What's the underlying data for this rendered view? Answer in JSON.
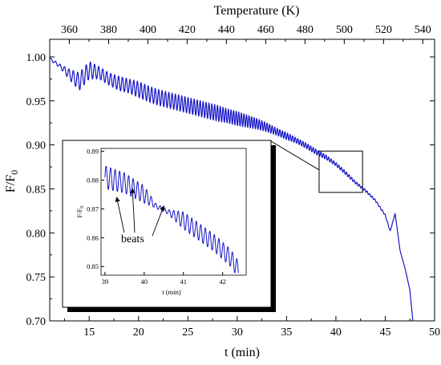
{
  "chart_data": [
    {
      "type": "line",
      "title": "",
      "xlabel": "t (min)",
      "ylabel": "F/F",
      "ylabel_subscript": "0",
      "x2label": "Temperature (K)",
      "xlim": [
        11,
        50
      ],
      "ylim": [
        0.7,
        1.02
      ],
      "x2lim": [
        350,
        546
      ],
      "xticks": [
        "15",
        "20",
        "25",
        "30",
        "35",
        "40",
        "45",
        "50"
      ],
      "yticks": [
        "0.70",
        "0.75",
        "0.80",
        "0.85",
        "0.90",
        "0.95",
        "1.00"
      ],
      "x2ticks": [
        "360",
        "380",
        "400",
        "420",
        "440",
        "460",
        "480",
        "500",
        "520",
        "540"
      ],
      "grid": false,
      "legend": "none",
      "line_color": "#1515c8",
      "series": [
        {
          "x": [
            11,
            12,
            13,
            14,
            15,
            16,
            17,
            18,
            19,
            20,
            21,
            22,
            23,
            24,
            25,
            26,
            27,
            28,
            29,
            30,
            31,
            32,
            33,
            34,
            35,
            36,
            37,
            38,
            39,
            40,
            41,
            42,
            43,
            44,
            45,
            45.5,
            46,
            46.5,
            47,
            47.5,
            47.8
          ],
          "y": [
            0.998,
            0.99,
            0.98,
            0.972,
            0.985,
            0.982,
            0.975,
            0.97,
            0.967,
            0.963,
            0.958,
            0.954,
            0.951,
            0.948,
            0.945,
            0.942,
            0.939,
            0.936,
            0.933,
            0.93,
            0.927,
            0.924,
            0.92,
            0.915,
            0.91,
            0.905,
            0.899,
            0.892,
            0.886,
            0.878,
            0.868,
            0.857,
            0.848,
            0.837,
            0.82,
            0.802,
            0.822,
            0.78,
            0.76,
            0.735,
            0.7
          ],
          "oscillation": [
            [
              11,
              0.0015
            ],
            [
              12,
              0.002
            ],
            [
              13,
              0.006
            ],
            [
              14,
              0.01
            ],
            [
              15,
              0.01
            ],
            [
              16,
              0.007
            ],
            [
              17,
              0.007
            ],
            [
              18,
              0.008
            ],
            [
              19,
              0.008
            ],
            [
              20,
              0.009
            ],
            [
              21,
              0.009
            ],
            [
              22,
              0.009
            ],
            [
              23,
              0.009
            ],
            [
              24,
              0.009
            ],
            [
              25,
              0.009
            ],
            [
              26,
              0.009
            ],
            [
              27,
              0.009
            ],
            [
              28,
              0.009
            ],
            [
              29,
              0.008
            ],
            [
              30,
              0.008
            ],
            [
              31,
              0.007
            ],
            [
              32,
              0.006
            ],
            [
              33,
              0.005
            ],
            [
              34,
              0.004
            ],
            [
              35,
              0.004
            ],
            [
              36,
              0.003
            ],
            [
              37,
              0.003
            ],
            [
              38,
              0.003
            ],
            [
              39,
              0.0025
            ],
            [
              40,
              0.002
            ],
            [
              41,
              0.002
            ],
            [
              42,
              0.0015
            ],
            [
              43,
              0.0015
            ],
            [
              44,
              0.001
            ],
            [
              45,
              0.001
            ],
            [
              46,
              0.0
            ],
            [
              48,
              0.0
            ]
          ]
        }
      ],
      "zoom_box": {
        "x": [
          38.3,
          42.7
        ],
        "y": [
          0.846,
          0.893
        ]
      }
    },
    {
      "type": "line",
      "title": "",
      "xlabel": "t (min)",
      "ylabel": "F/F",
      "ylabel_subscript": "0",
      "xlim": [
        38.9,
        42.6
      ],
      "ylim": [
        0.847,
        0.891
      ],
      "xticks": [
        "39",
        "40",
        "41",
        "42"
      ],
      "yticks": [
        "0.85",
        "0.86",
        "0.87",
        "0.88",
        "0.89"
      ],
      "grid": false,
      "legend": "none",
      "line_color": "#1515c8",
      "series": [
        {
          "x": [
            39.0,
            39.5,
            40.0,
            40.3,
            40.6,
            41.0,
            41.4,
            41.8,
            42.2,
            42.4
          ],
          "y": [
            0.881,
            0.879,
            0.875,
            0.871,
            0.869,
            0.866,
            0.862,
            0.858,
            0.853,
            0.849
          ],
          "oscillation": [
            [
              39.0,
              0.004
            ],
            [
              39.5,
              0.0035
            ],
            [
              40.0,
              0.003
            ],
            [
              40.3,
              0.0008
            ],
            [
              40.6,
              0.0008
            ],
            [
              41.0,
              0.003
            ],
            [
              41.4,
              0.003
            ],
            [
              41.8,
              0.003
            ],
            [
              42.2,
              0.003
            ],
            [
              42.4,
              0.003
            ]
          ]
        }
      ],
      "annotation": {
        "text": "beats",
        "targets": [
          [
            39.3,
            0.874
          ],
          [
            39.7,
            0.877
          ],
          [
            40.5,
            0.871
          ]
        ]
      }
    }
  ]
}
